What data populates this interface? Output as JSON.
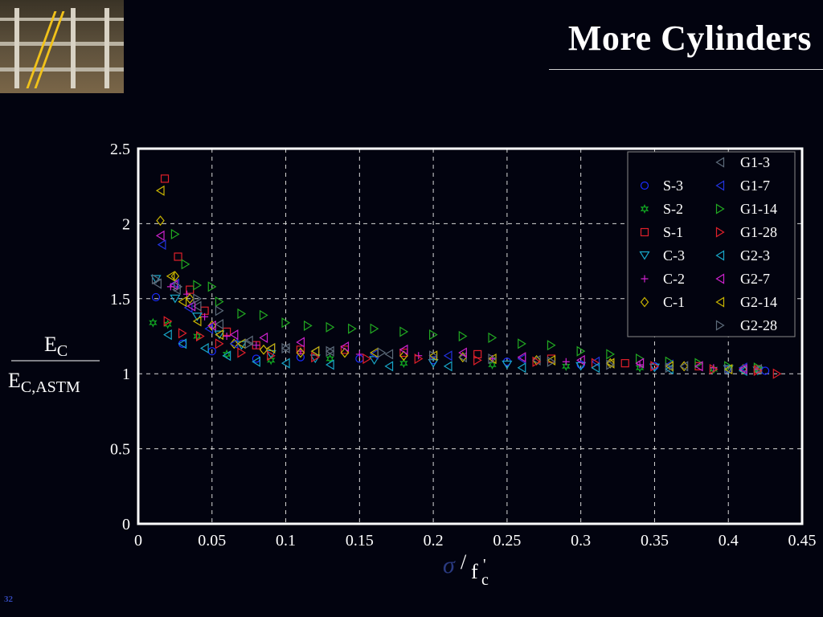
{
  "slide": {
    "title": "More Cylinders",
    "number": "32"
  },
  "chart_data": {
    "type": "scatter",
    "title": "",
    "xlabel": "σ/f'c",
    "ylabel": "E_C / E_C,ASTM",
    "xlim": [
      0,
      0.45
    ],
    "ylim": [
      0,
      2.5
    ],
    "xticks": [
      "0",
      "0.05",
      "0.1",
      "0.15",
      "0.2",
      "0.25",
      "0.3",
      "0.35",
      "0.4",
      "0.45"
    ],
    "yticks": [
      "0",
      "0.5",
      "1",
      "1.5",
      "2",
      "2.5"
    ],
    "grid": true,
    "legend_position": "top-right",
    "series": [
      {
        "name": "S-3",
        "marker": "circle",
        "color": "#1a2cff",
        "x": [
          0.012,
          0.03,
          0.05,
          0.08,
          0.11,
          0.15,
          0.2,
          0.25,
          0.3,
          0.35,
          0.4,
          0.425
        ],
        "y": [
          1.51,
          1.2,
          1.15,
          1.1,
          1.11,
          1.1,
          1.09,
          1.08,
          1.06,
          1.05,
          1.03,
          1.02
        ]
      },
      {
        "name": "S-2",
        "marker": "star",
        "color": "#11aa22",
        "x": [
          0.01,
          0.02,
          0.04,
          0.06,
          0.09,
          0.13,
          0.18,
          0.24,
          0.29,
          0.34,
          0.39,
          0.42
        ],
        "y": [
          1.34,
          1.33,
          1.25,
          1.13,
          1.09,
          1.1,
          1.07,
          1.06,
          1.05,
          1.04,
          1.03,
          1.02
        ]
      },
      {
        "name": "S-1",
        "marker": "square",
        "color": "#e0202a",
        "x": [
          0.018,
          0.027,
          0.035,
          0.045,
          0.06,
          0.08,
          0.11,
          0.14,
          0.18,
          0.23,
          0.28,
          0.33,
          0.38,
          0.42
        ],
        "y": [
          2.3,
          1.78,
          1.56,
          1.42,
          1.28,
          1.19,
          1.16,
          1.16,
          1.14,
          1.13,
          1.1,
          1.07,
          1.05,
          1.03
        ]
      },
      {
        "name": "C-3",
        "marker": "triangle-down",
        "color": "#18a6c8",
        "x": [
          0.012,
          0.025,
          0.04,
          0.055,
          0.07,
          0.09,
          0.12,
          0.16,
          0.2,
          0.25,
          0.3,
          0.35,
          0.4,
          0.42
        ],
        "y": [
          1.63,
          1.5,
          1.38,
          1.26,
          1.19,
          1.13,
          1.1,
          1.09,
          1.07,
          1.06,
          1.05,
          1.04,
          1.03,
          1.02
        ]
      },
      {
        "name": "C-2",
        "marker": "plus",
        "color": "#cc22cc",
        "x": [
          0.022,
          0.033,
          0.045,
          0.06,
          0.08,
          0.11,
          0.15,
          0.19,
          0.24,
          0.29,
          0.34,
          0.39,
          0.42
        ],
        "y": [
          1.58,
          1.53,
          1.38,
          1.25,
          1.19,
          1.15,
          1.13,
          1.12,
          1.1,
          1.08,
          1.06,
          1.04,
          1.03
        ]
      },
      {
        "name": "C-1",
        "marker": "diamond",
        "color": "#c8b400",
        "x": [
          0.015,
          0.025,
          0.035,
          0.05,
          0.065,
          0.085,
          0.11,
          0.14,
          0.18,
          0.22,
          0.27,
          0.32,
          0.37,
          0.41
        ],
        "y": [
          2.02,
          1.65,
          1.5,
          1.32,
          1.2,
          1.16,
          1.14,
          1.14,
          1.12,
          1.11,
          1.09,
          1.07,
          1.05,
          1.03
        ]
      },
      {
        "name": "G1-3",
        "marker": "triangle-left",
        "color": "#5d6b7a",
        "x": [
          0.013,
          0.026,
          0.04,
          0.055,
          0.075,
          0.1,
          0.13,
          0.17,
          0.22,
          0.27,
          0.32,
          0.37,
          0.42
        ],
        "y": [
          1.6,
          1.56,
          1.45,
          1.33,
          1.22,
          1.17,
          1.15,
          1.13,
          1.11,
          1.09,
          1.07,
          1.05,
          1.03
        ]
      },
      {
        "name": "G1-7",
        "marker": "triangle-left",
        "color": "#2233dd",
        "x": [
          0.016,
          0.025,
          0.034,
          0.048,
          0.065,
          0.09,
          0.12,
          0.16,
          0.21,
          0.26,
          0.31,
          0.36,
          0.41
        ],
        "y": [
          1.86,
          1.6,
          1.44,
          1.3,
          1.2,
          1.17,
          1.15,
          1.13,
          1.12,
          1.1,
          1.08,
          1.06,
          1.04
        ]
      },
      {
        "name": "G1-14",
        "marker": "triangle-right",
        "color": "#22aa22",
        "x": [
          0.025,
          0.032,
          0.04,
          0.05,
          0.055,
          0.07,
          0.085,
          0.1,
          0.115,
          0.13,
          0.145,
          0.16,
          0.18,
          0.2,
          0.22,
          0.24,
          0.26,
          0.28,
          0.3,
          0.32,
          0.34,
          0.36,
          0.38,
          0.4,
          0.42
        ],
        "y": [
          1.93,
          1.73,
          1.59,
          1.58,
          1.48,
          1.4,
          1.39,
          1.34,
          1.32,
          1.31,
          1.3,
          1.3,
          1.28,
          1.26,
          1.25,
          1.24,
          1.2,
          1.19,
          1.15,
          1.13,
          1.1,
          1.08,
          1.07,
          1.05,
          1.04
        ]
      },
      {
        "name": "G1-28",
        "marker": "triangle-right",
        "color": "#e0202a",
        "x": [
          0.02,
          0.03,
          0.042,
          0.055,
          0.07,
          0.09,
          0.12,
          0.155,
          0.19,
          0.23,
          0.27,
          0.31,
          0.35,
          0.39,
          0.42,
          0.433
        ],
        "y": [
          1.35,
          1.27,
          1.25,
          1.2,
          1.14,
          1.12,
          1.11,
          1.1,
          1.1,
          1.09,
          1.08,
          1.07,
          1.05,
          1.03,
          1.02,
          1.0
        ]
      },
      {
        "name": "G2-3",
        "marker": "triangle-left",
        "color": "#18a6c8",
        "x": [
          0.02,
          0.03,
          0.045,
          0.06,
          0.08,
          0.1,
          0.13,
          0.17,
          0.21,
          0.26,
          0.31,
          0.36,
          0.41
        ],
        "y": [
          1.26,
          1.2,
          1.17,
          1.12,
          1.08,
          1.07,
          1.06,
          1.05,
          1.05,
          1.04,
          1.04,
          1.03,
          1.02
        ]
      },
      {
        "name": "G2-7",
        "marker": "triangle-left",
        "color": "#cc22cc",
        "x": [
          0.015,
          0.024,
          0.036,
          0.05,
          0.065,
          0.085,
          0.11,
          0.14,
          0.18,
          0.22,
          0.26,
          0.3,
          0.34,
          0.38,
          0.41
        ],
        "y": [
          1.92,
          1.59,
          1.45,
          1.32,
          1.26,
          1.24,
          1.21,
          1.18,
          1.16,
          1.14,
          1.11,
          1.09,
          1.07,
          1.05,
          1.03
        ]
      },
      {
        "name": "G2-14",
        "marker": "triangle-left",
        "color": "#c8b400",
        "x": [
          0.015,
          0.022,
          0.03,
          0.04,
          0.055,
          0.07,
          0.09,
          0.12,
          0.16,
          0.2,
          0.24,
          0.28,
          0.32,
          0.36,
          0.4
        ],
        "y": [
          2.22,
          1.65,
          1.48,
          1.35,
          1.26,
          1.2,
          1.17,
          1.15,
          1.14,
          1.12,
          1.1,
          1.09,
          1.07,
          1.05,
          1.03
        ]
      },
      {
        "name": "G2-28",
        "marker": "triangle-right",
        "color": "#5d6b7a",
        "x": [
          0.012,
          0.027,
          0.04,
          0.055,
          0.075,
          0.1,
          0.13,
          0.165,
          0.2,
          0.24,
          0.28,
          0.32,
          0.36,
          0.4
        ],
        "y": [
          1.63,
          1.58,
          1.5,
          1.42,
          1.2,
          1.17,
          1.15,
          1.14,
          1.12,
          1.1,
          1.08,
          1.06,
          1.04,
          1.03
        ]
      }
    ]
  }
}
